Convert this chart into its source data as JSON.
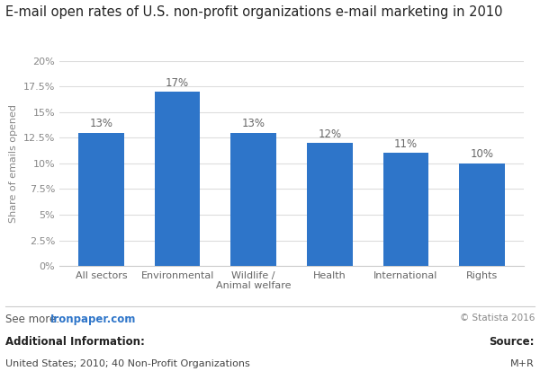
{
  "title": "E-mail open rates of U.S. non-profit organizations e-mail marketing in 2010",
  "categories": [
    "All sectors",
    "Environmental",
    "Wildlife /\nAnimal welfare",
    "Health",
    "International",
    "Rights"
  ],
  "values": [
    0.13,
    0.17,
    0.13,
    0.12,
    0.11,
    0.1
  ],
  "bar_labels": [
    "13%",
    "17%",
    "13%",
    "12%",
    "11%",
    "10%"
  ],
  "bar_color": "#2e75c9",
  "ylabel": "Share of emails opened",
  "ylim": [
    0,
    0.2
  ],
  "yticks": [
    0,
    0.025,
    0.05,
    0.075,
    0.1,
    0.125,
    0.15,
    0.175,
    0.2
  ],
  "ytick_labels": [
    "0%",
    "2.5%",
    "5%",
    "7.5%",
    "10%",
    "12.5%",
    "15%",
    "17.5%",
    "20%"
  ],
  "grid_color": "#dddddd",
  "background_color": "#ffffff",
  "plot_bg_color": "#ffffff",
  "footer_see_more": "See more: ",
  "footer_link": "Ironpaper.com",
  "footer_additional": "Additional Information:",
  "footer_info": "United States; 2010; 40 Non-Profit Organizations",
  "footer_statista": "© Statista 2016",
  "footer_source_label": "Source:",
  "footer_source": "M+R",
  "title_fontsize": 10.5,
  "label_fontsize": 8.5,
  "tick_fontsize": 8,
  "ylabel_fontsize": 8
}
